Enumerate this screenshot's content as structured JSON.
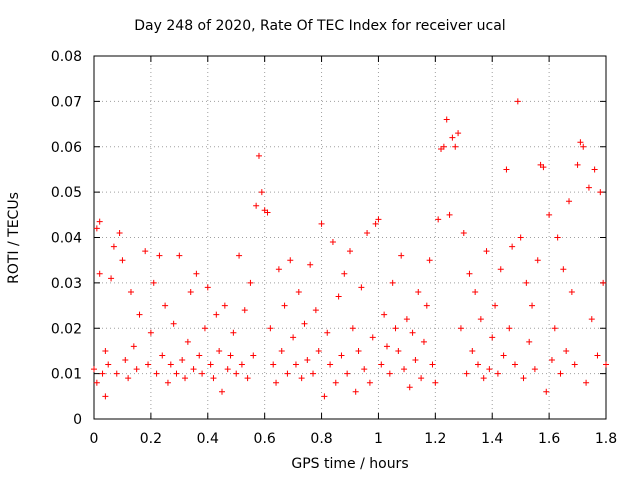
{
  "chart_data": {
    "type": "scatter",
    "title": "Day 248 of 2020, Rate Of TEC Index for receiver ucal",
    "xlabel": "GPS time / hours",
    "ylabel": "ROTI / TECUs",
    "xlim": [
      0,
      1.8
    ],
    "ylim": [
      0,
      0.08
    ],
    "grid": true,
    "marker": "+",
    "color": "#ff0000",
    "x_ticks": [
      "0",
      "0.2",
      "0.4",
      "0.6",
      "0.8",
      "1",
      "1.2",
      "1.4",
      "1.6",
      "1.8"
    ],
    "y_ticks": [
      "0",
      "0.01",
      "0.02",
      "0.03",
      "0.04",
      "0.05",
      "0.06",
      "0.07",
      "0.08"
    ],
    "series": [
      {
        "points": [
          [
            0.0,
            0.011
          ],
          [
            0.01,
            0.008
          ],
          [
            0.01,
            0.042
          ],
          [
            0.02,
            0.0435
          ],
          [
            0.02,
            0.032
          ],
          [
            0.03,
            0.01
          ],
          [
            0.04,
            0.015
          ],
          [
            0.04,
            0.005
          ],
          [
            0.05,
            0.012
          ],
          [
            0.06,
            0.031
          ],
          [
            0.07,
            0.038
          ],
          [
            0.08,
            0.01
          ],
          [
            0.09,
            0.041
          ],
          [
            0.1,
            0.035
          ],
          [
            0.11,
            0.013
          ],
          [
            0.12,
            0.009
          ],
          [
            0.13,
            0.028
          ],
          [
            0.14,
            0.016
          ],
          [
            0.15,
            0.011
          ],
          [
            0.16,
            0.023
          ],
          [
            0.18,
            0.037
          ],
          [
            0.19,
            0.012
          ],
          [
            0.2,
            0.019
          ],
          [
            0.21,
            0.03
          ],
          [
            0.22,
            0.01
          ],
          [
            0.23,
            0.036
          ],
          [
            0.24,
            0.014
          ],
          [
            0.25,
            0.025
          ],
          [
            0.26,
            0.008
          ],
          [
            0.27,
            0.012
          ],
          [
            0.28,
            0.021
          ],
          [
            0.29,
            0.01
          ],
          [
            0.3,
            0.036
          ],
          [
            0.31,
            0.013
          ],
          [
            0.32,
            0.009
          ],
          [
            0.33,
            0.017
          ],
          [
            0.34,
            0.028
          ],
          [
            0.35,
            0.011
          ],
          [
            0.36,
            0.032
          ],
          [
            0.37,
            0.014
          ],
          [
            0.38,
            0.01
          ],
          [
            0.39,
            0.02
          ],
          [
            0.4,
            0.029
          ],
          [
            0.41,
            0.012
          ],
          [
            0.42,
            0.009
          ],
          [
            0.43,
            0.023
          ],
          [
            0.44,
            0.015
          ],
          [
            0.45,
            0.006
          ],
          [
            0.46,
            0.025
          ],
          [
            0.47,
            0.011
          ],
          [
            0.48,
            0.014
          ],
          [
            0.49,
            0.019
          ],
          [
            0.5,
            0.01
          ],
          [
            0.51,
            0.036
          ],
          [
            0.52,
            0.012
          ],
          [
            0.53,
            0.024
          ],
          [
            0.54,
            0.009
          ],
          [
            0.55,
            0.03
          ],
          [
            0.56,
            0.014
          ],
          [
            0.57,
            0.047
          ],
          [
            0.58,
            0.058
          ],
          [
            0.59,
            0.05
          ],
          [
            0.6,
            0.046
          ],
          [
            0.61,
            0.0455
          ],
          [
            0.62,
            0.02
          ],
          [
            0.63,
            0.012
          ],
          [
            0.64,
            0.008
          ],
          [
            0.65,
            0.033
          ],
          [
            0.66,
            0.015
          ],
          [
            0.67,
            0.025
          ],
          [
            0.68,
            0.01
          ],
          [
            0.69,
            0.035
          ],
          [
            0.7,
            0.018
          ],
          [
            0.71,
            0.012
          ],
          [
            0.72,
            0.028
          ],
          [
            0.73,
            0.009
          ],
          [
            0.74,
            0.021
          ],
          [
            0.75,
            0.013
          ],
          [
            0.76,
            0.034
          ],
          [
            0.77,
            0.01
          ],
          [
            0.78,
            0.024
          ],
          [
            0.79,
            0.015
          ],
          [
            0.8,
            0.043
          ],
          [
            0.81,
            0.005
          ],
          [
            0.82,
            0.019
          ],
          [
            0.83,
            0.012
          ],
          [
            0.84,
            0.039
          ],
          [
            0.85,
            0.008
          ],
          [
            0.86,
            0.027
          ],
          [
            0.87,
            0.014
          ],
          [
            0.88,
            0.032
          ],
          [
            0.89,
            0.01
          ],
          [
            0.9,
            0.037
          ],
          [
            0.91,
            0.02
          ],
          [
            0.92,
            0.006
          ],
          [
            0.93,
            0.015
          ],
          [
            0.94,
            0.029
          ],
          [
            0.95,
            0.011
          ],
          [
            0.96,
            0.041
          ],
          [
            0.97,
            0.008
          ],
          [
            0.98,
            0.018
          ],
          [
            0.99,
            0.043
          ],
          [
            1.0,
            0.044
          ],
          [
            1.01,
            0.012
          ],
          [
            1.02,
            0.023
          ],
          [
            1.03,
            0.016
          ],
          [
            1.04,
            0.01
          ],
          [
            1.05,
            0.03
          ],
          [
            1.06,
            0.02
          ],
          [
            1.07,
            0.015
          ],
          [
            1.08,
            0.036
          ],
          [
            1.09,
            0.011
          ],
          [
            1.1,
            0.022
          ],
          [
            1.11,
            0.007
          ],
          [
            1.12,
            0.019
          ],
          [
            1.13,
            0.013
          ],
          [
            1.14,
            0.028
          ],
          [
            1.15,
            0.009
          ],
          [
            1.16,
            0.017
          ],
          [
            1.17,
            0.025
          ],
          [
            1.18,
            0.035
          ],
          [
            1.19,
            0.012
          ],
          [
            1.2,
            0.008
          ],
          [
            1.21,
            0.044
          ],
          [
            1.22,
            0.0595
          ],
          [
            1.23,
            0.06
          ],
          [
            1.24,
            0.066
          ],
          [
            1.25,
            0.045
          ],
          [
            1.26,
            0.062
          ],
          [
            1.27,
            0.06
          ],
          [
            1.28,
            0.063
          ],
          [
            1.29,
            0.02
          ],
          [
            1.3,
            0.041
          ],
          [
            1.31,
            0.01
          ],
          [
            1.32,
            0.032
          ],
          [
            1.33,
            0.015
          ],
          [
            1.34,
            0.028
          ],
          [
            1.35,
            0.012
          ],
          [
            1.36,
            0.022
          ],
          [
            1.37,
            0.009
          ],
          [
            1.38,
            0.037
          ],
          [
            1.39,
            0.011
          ],
          [
            1.4,
            0.018
          ],
          [
            1.41,
            0.025
          ],
          [
            1.42,
            0.01
          ],
          [
            1.43,
            0.033
          ],
          [
            1.44,
            0.014
          ],
          [
            1.45,
            0.055
          ],
          [
            1.46,
            0.02
          ],
          [
            1.47,
            0.038
          ],
          [
            1.48,
            0.012
          ],
          [
            1.49,
            0.07
          ],
          [
            1.5,
            0.04
          ],
          [
            1.51,
            0.009
          ],
          [
            1.52,
            0.03
          ],
          [
            1.53,
            0.017
          ],
          [
            1.54,
            0.025
          ],
          [
            1.55,
            0.011
          ],
          [
            1.56,
            0.035
          ],
          [
            1.57,
            0.056
          ],
          [
            1.58,
            0.0555
          ],
          [
            1.59,
            0.006
          ],
          [
            1.6,
            0.045
          ],
          [
            1.61,
            0.013
          ],
          [
            1.62,
            0.02
          ],
          [
            1.63,
            0.04
          ],
          [
            1.64,
            0.01
          ],
          [
            1.65,
            0.033
          ],
          [
            1.66,
            0.015
          ],
          [
            1.67,
            0.048
          ],
          [
            1.68,
            0.028
          ],
          [
            1.69,
            0.012
          ],
          [
            1.7,
            0.056
          ],
          [
            1.71,
            0.061
          ],
          [
            1.72,
            0.06
          ],
          [
            1.73,
            0.008
          ],
          [
            1.74,
            0.051
          ],
          [
            1.75,
            0.022
          ],
          [
            1.76,
            0.055
          ],
          [
            1.77,
            0.014
          ],
          [
            1.78,
            0.05
          ],
          [
            1.79,
            0.03
          ],
          [
            1.8,
            0.012
          ]
        ]
      }
    ]
  }
}
